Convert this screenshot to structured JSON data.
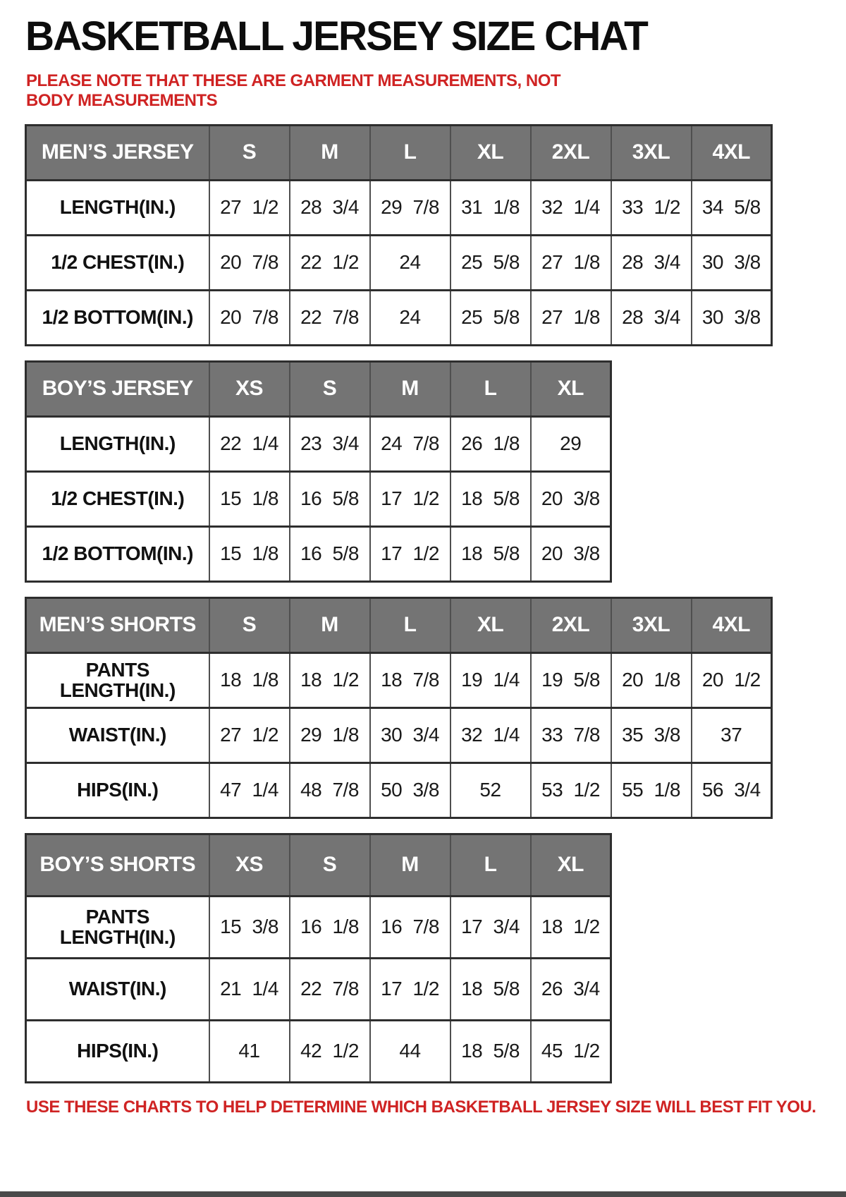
{
  "page": {
    "title": "BASKETBALL JERSEY SIZE CHAT",
    "note": "PLEASE NOTE THAT THESE ARE GARMENT MEASUREMENTS, NOT BODY MEASUREMENTS",
    "footer": "USE THESE CHARTS TO HELP DETERMINE WHICH BASKETBALL JERSEY SIZE WILL BEST FIT YOU."
  },
  "colors": {
    "header_bg": "#747474",
    "header_text": "#ffffff",
    "accent_red": "#cf2323",
    "border_dark": "#2e2e2e",
    "border_light": "#4f4f4f"
  },
  "tables": [
    {
      "id": "mens-jersey",
      "label": "MEN’S JERSEY",
      "sizes": [
        "S",
        "M",
        "L",
        "XL",
        "2XL",
        "3XL",
        "4XL"
      ],
      "rows": [
        {
          "label": "LENGTH(IN.)",
          "values": [
            "27 1/2",
            "28 3/4",
            "29 7/8",
            "31 1/8",
            "32 1/4",
            "33 1/2",
            "34 5/8"
          ]
        },
        {
          "label": "1/2 CHEST(IN.)",
          "values": [
            "20 7/8",
            "22 1/2",
            "24",
            "25 5/8",
            "27 1/8",
            "28 3/4",
            "30 3/8"
          ]
        },
        {
          "label": "1/2 BOTTOM(IN.)",
          "values": [
            "20 7/8",
            "22 7/8",
            "24",
            "25 5/8",
            "27 1/8",
            "28 3/4",
            "30 3/8"
          ]
        }
      ]
    },
    {
      "id": "boys-jersey",
      "label": "BOY’S JERSEY",
      "sizes": [
        "XS",
        "S",
        "M",
        "L",
        "XL"
      ],
      "rows": [
        {
          "label": "LENGTH(IN.)",
          "values": [
            "22 1/4",
            "23 3/4",
            "24 7/8",
            "26 1/8",
            "29"
          ]
        },
        {
          "label": "1/2 CHEST(IN.)",
          "values": [
            "15 1/8",
            "16 5/8",
            "17 1/2",
            "18 5/8",
            "20 3/8"
          ]
        },
        {
          "label": "1/2 BOTTOM(IN.)",
          "values": [
            "15 1/8",
            "16 5/8",
            "17 1/2",
            "18 5/8",
            "20 3/8"
          ]
        }
      ]
    },
    {
      "id": "mens-shorts",
      "label": "MEN’S SHORTS",
      "sizes": [
        "S",
        "M",
        "L",
        "XL",
        "2XL",
        "3XL",
        "4XL"
      ],
      "rows": [
        {
          "label": "PANTS LENGTH(IN.)",
          "values": [
            "18 1/8",
            "18 1/2",
            "18 7/8",
            "19 1/4",
            "19 5/8",
            "20 1/8",
            "20 1/2"
          ]
        },
        {
          "label": "WAIST(IN.)",
          "values": [
            "27 1/2",
            "29 1/8",
            "30 3/4",
            "32 1/4",
            "33 7/8",
            "35 3/8",
            "37"
          ]
        },
        {
          "label": "HIPS(IN.)",
          "values": [
            "47 1/4",
            "48 7/8",
            "50 3/8",
            "52",
            "53 1/2",
            "55 1/8",
            "56 3/4"
          ]
        }
      ]
    },
    {
      "id": "boys-shorts",
      "label": "BOY’S SHORTS",
      "sizes": [
        "XS",
        "S",
        "M",
        "L",
        "XL"
      ],
      "rows": [
        {
          "label": "PANTS LENGTH(IN.)",
          "values": [
            "15 3/8",
            "16 1/8",
            "16 7/8",
            "17 3/4",
            "18 1/2"
          ]
        },
        {
          "label": "WAIST(IN.)",
          "values": [
            "21 1/4",
            "22 7/8",
            "17 1/2",
            "18 5/8",
            "26 3/4"
          ]
        },
        {
          "label": "HIPS(IN.)",
          "values": [
            "41",
            "42 1/2",
            "44",
            "18 5/8",
            "45 1/2"
          ]
        }
      ]
    }
  ]
}
